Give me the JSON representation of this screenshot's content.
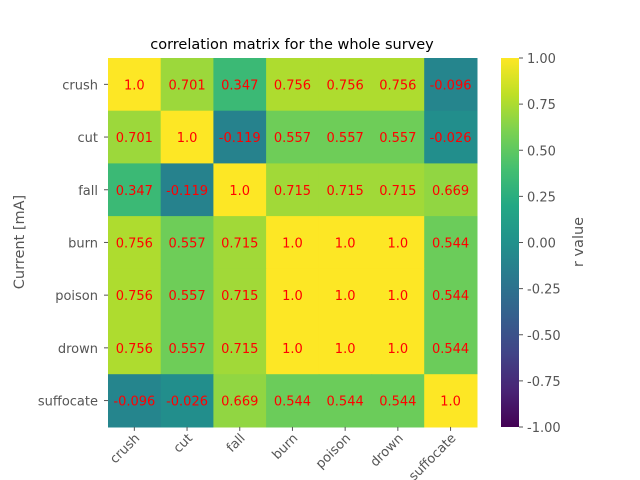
{
  "chart_data": {
    "type": "heatmap",
    "title": "correlation matrix for the whole survey",
    "ylabel": "Current [mA]",
    "xlabel": "",
    "colorbar": {
      "label": "r value",
      "range": [
        -1.0,
        1.0
      ],
      "ticks": [
        "1.00",
        "0.75",
        "0.50",
        "0.25",
        "0.00",
        "-0.25",
        "-0.50",
        "-0.75",
        "-1.00"
      ],
      "tick_values": [
        1.0,
        0.75,
        0.5,
        0.25,
        0.0,
        -0.25,
        -0.5,
        -0.75,
        -1.0
      ],
      "colormap": "viridis"
    },
    "categories": [
      "crush",
      "cut",
      "fall",
      "burn",
      "poison",
      "drown",
      "suffocate"
    ],
    "matrix": [
      [
        1.0,
        0.701,
        0.347,
        0.756,
        0.756,
        0.756,
        -0.096
      ],
      [
        0.701,
        1.0,
        -0.119,
        0.557,
        0.557,
        0.557,
        -0.026
      ],
      [
        0.347,
        -0.119,
        1.0,
        0.715,
        0.715,
        0.715,
        0.669
      ],
      [
        0.756,
        0.557,
        0.715,
        1.0,
        1.0,
        1.0,
        0.544
      ],
      [
        0.756,
        0.557,
        0.715,
        1.0,
        1.0,
        1.0,
        0.544
      ],
      [
        0.756,
        0.557,
        0.715,
        1.0,
        1.0,
        1.0,
        0.544
      ],
      [
        -0.096,
        -0.026,
        0.669,
        0.544,
        0.544,
        0.544,
        1.0
      ]
    ],
    "cell_labels": [
      [
        "1.0",
        "0.701",
        "0.347",
        "0.756",
        "0.756",
        "0.756",
        "-0.096"
      ],
      [
        "0.701",
        "1.0",
        "-0.119",
        "0.557",
        "0.557",
        "0.557",
        "-0.026"
      ],
      [
        "0.347",
        "-0.119",
        "1.0",
        "0.715",
        "0.715",
        "0.715",
        "0.669"
      ],
      [
        "0.756",
        "0.557",
        "0.715",
        "1.0",
        "1.0",
        "1.0",
        "0.544"
      ],
      [
        "0.756",
        "0.557",
        "0.715",
        "1.0",
        "1.0",
        "1.0",
        "0.544"
      ],
      [
        "0.756",
        "0.557",
        "0.715",
        "1.0",
        "1.0",
        "1.0",
        "0.544"
      ],
      [
        "-0.096",
        "-0.026",
        "0.669",
        "0.544",
        "0.544",
        "0.544",
        "1.0"
      ]
    ],
    "annotation_color": "#ff0000",
    "grid": false
  }
}
